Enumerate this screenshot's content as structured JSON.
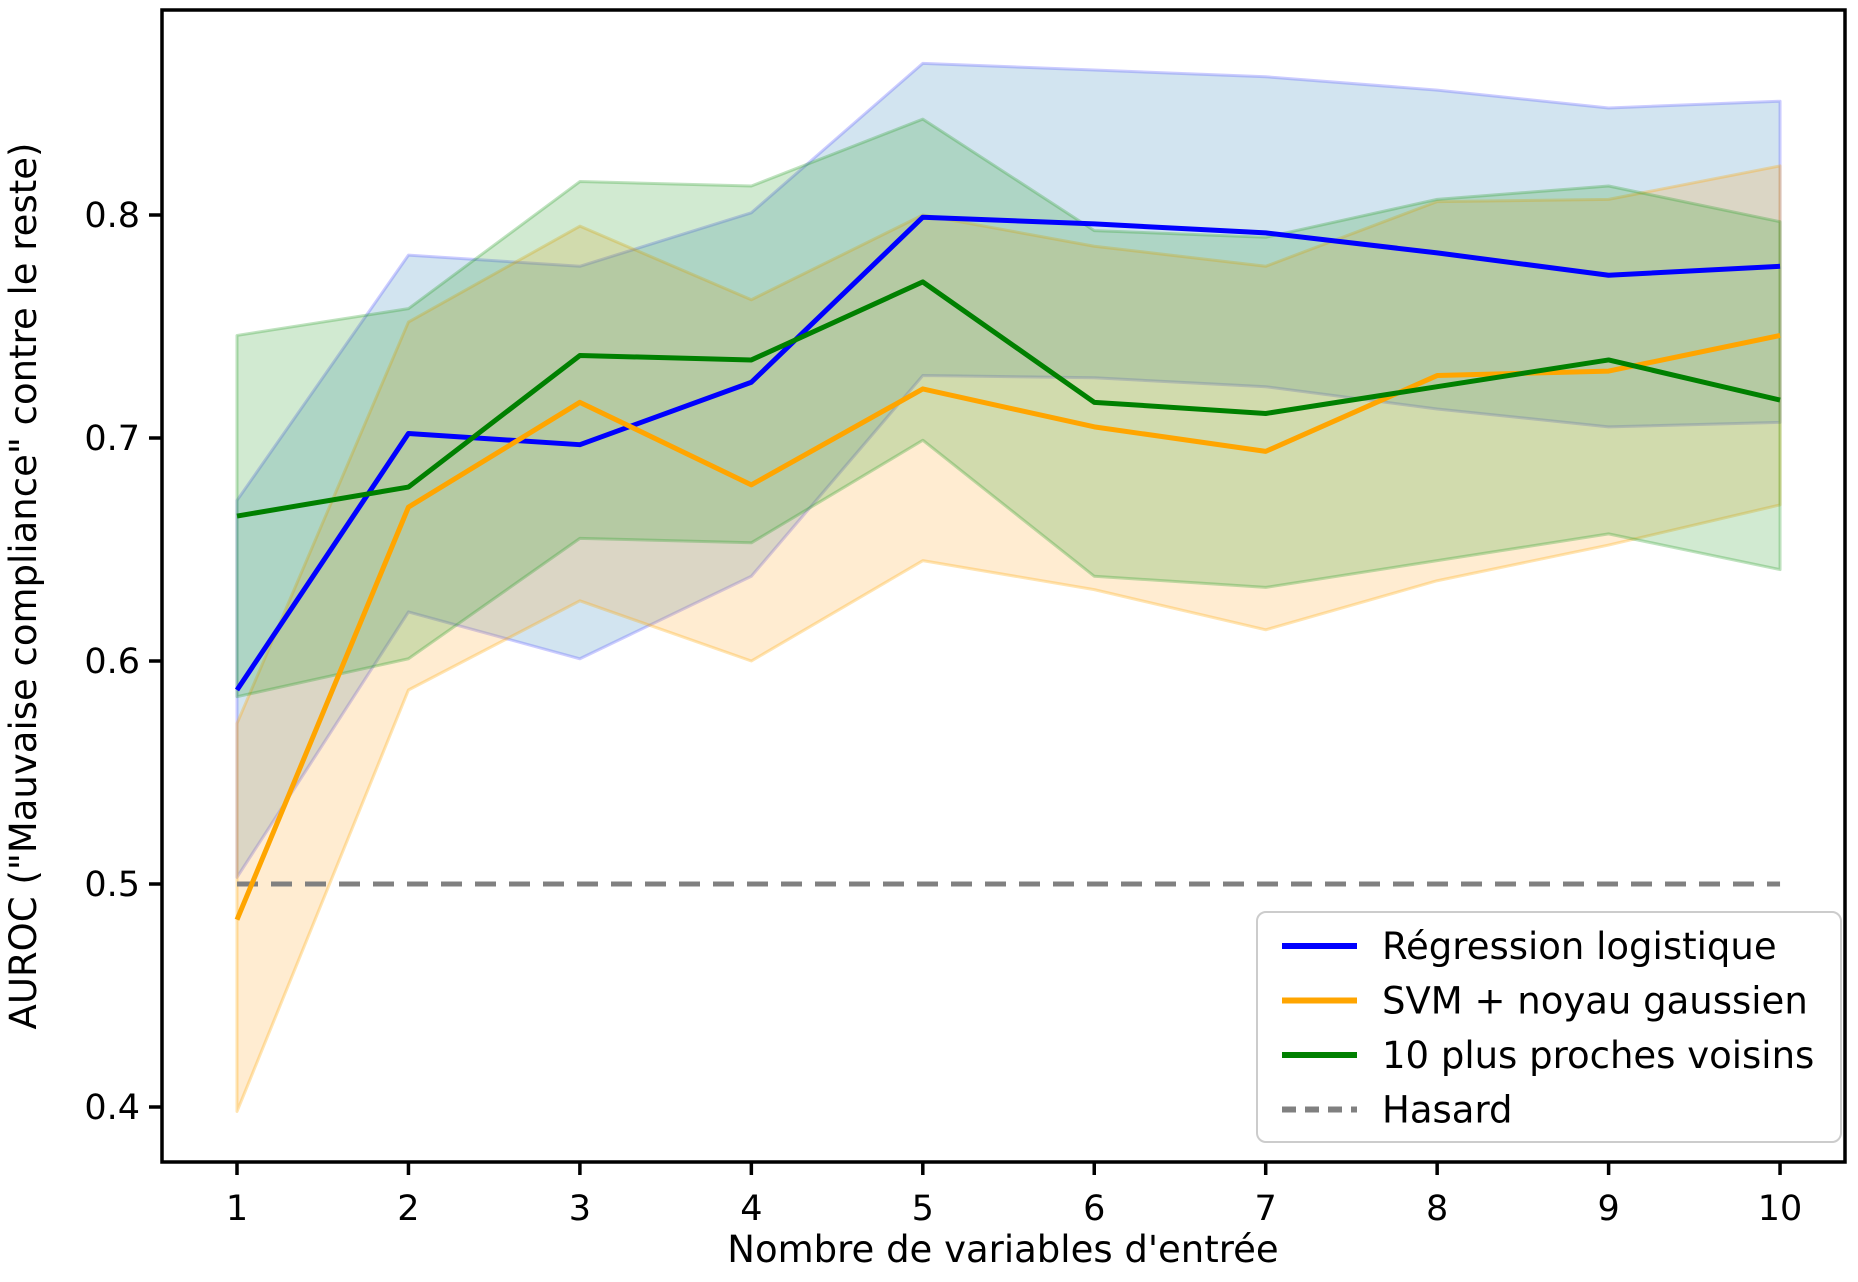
{
  "figure": {
    "background": "#ffffff",
    "frame_color": "#000000",
    "tick_color": "#000000"
  },
  "chart_data": {
    "type": "line",
    "title": "",
    "xlabel": "Nombre de variables d'entrée",
    "ylabel": "AUROC (\"Mauvaise compliance\" contre le reste)",
    "x": [
      1,
      2,
      3,
      4,
      5,
      6,
      7,
      8,
      9,
      10
    ],
    "yticks": [
      "0.4",
      "0.5",
      "0.6",
      "0.7",
      "0.8"
    ],
    "ytick_values": [
      0.4,
      0.5,
      0.6,
      0.7,
      0.8
    ],
    "xlim": [
      0.55,
      10.45
    ],
    "ylim": [
      0.375,
      0.892
    ],
    "grid": false,
    "legend_position": "lower right",
    "series": [
      {
        "name": "Régression logistique",
        "color": "#0000ff",
        "band_fill": "#1f77b4",
        "band_fill_opacity": 0.2,
        "band_edge": "#5555ff",
        "dash": false,
        "values": [
          0.587,
          0.702,
          0.697,
          0.725,
          0.799,
          0.796,
          0.792,
          0.783,
          0.773,
          0.777
        ],
        "band_lower": [
          0.503,
          0.622,
          0.601,
          0.638,
          0.728,
          0.727,
          0.723,
          0.713,
          0.705,
          0.707
        ],
        "band_upper": [
          0.672,
          0.782,
          0.777,
          0.801,
          0.868,
          0.865,
          0.862,
          0.856,
          0.848,
          0.851
        ]
      },
      {
        "name": "SVM + noyau gaussien",
        "color": "#ffa500",
        "band_fill": "#ff9e1b",
        "band_fill_opacity": 0.2,
        "band_edge": "#ffa500",
        "dash": false,
        "values": [
          0.484,
          0.669,
          0.716,
          0.679,
          0.722,
          0.705,
          0.694,
          0.728,
          0.73,
          0.746
        ],
        "band_lower": [
          0.398,
          0.587,
          0.627,
          0.6,
          0.645,
          0.632,
          0.614,
          0.636,
          0.652,
          0.67
        ],
        "band_upper": [
          0.572,
          0.752,
          0.795,
          0.762,
          0.8,
          0.786,
          0.777,
          0.806,
          0.807,
          0.822
        ]
      },
      {
        "name": "10 plus proches voisins",
        "color": "#008000",
        "band_fill": "#2ca02c",
        "band_fill_opacity": 0.22,
        "band_edge": "#2ca02c",
        "dash": false,
        "values": [
          0.665,
          0.678,
          0.737,
          0.735,
          0.77,
          0.716,
          0.711,
          0.723,
          0.735,
          0.717
        ],
        "band_lower": [
          0.584,
          0.601,
          0.655,
          0.653,
          0.699,
          0.638,
          0.633,
          0.645,
          0.657,
          0.641
        ],
        "band_upper": [
          0.746,
          0.758,
          0.815,
          0.813,
          0.843,
          0.793,
          0.79,
          0.807,
          0.813,
          0.797
        ]
      },
      {
        "name": "Hasard",
        "color": "#808080",
        "dash": true,
        "values": [
          0.5,
          0.5,
          0.5,
          0.5,
          0.5,
          0.5,
          0.5,
          0.5,
          0.5,
          0.5
        ]
      }
    ]
  }
}
